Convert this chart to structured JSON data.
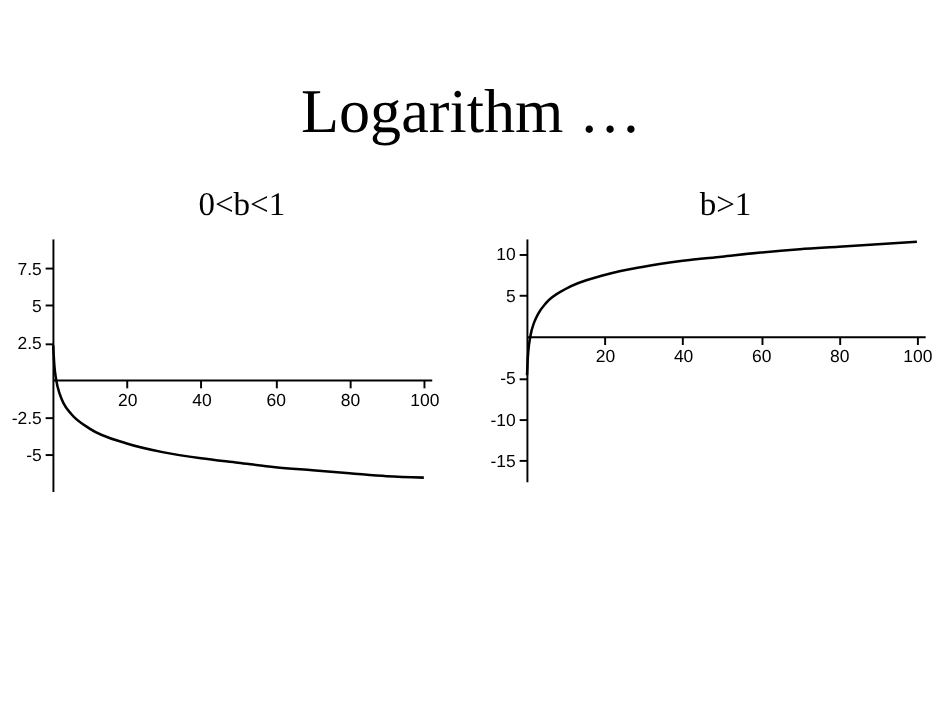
{
  "chart_data": [
    {
      "type": "line",
      "title": "Logarithm …",
      "subtitle": "0<b<1",
      "color": "#000000",
      "x": [
        0.2,
        0.5,
        1,
        2,
        3,
        5,
        10,
        20,
        30,
        40,
        50,
        60,
        70,
        80,
        90,
        100
      ],
      "values": [
        2.3,
        1.0,
        0.0,
        -1.0,
        -1.6,
        -2.3,
        -3.3,
        -4.3,
        -4.9,
        -5.3,
        -5.6,
        -5.9,
        -6.1,
        -6.3,
        -6.5,
        -6.6
      ],
      "xlim": [
        0,
        102
      ],
      "ylim": [
        -7.5,
        9.5
      ],
      "xticks": [
        20,
        40,
        60,
        80,
        100
      ],
      "yticks": [
        -5,
        -2.5,
        2.5,
        5,
        7.5
      ],
      "grid": false
    },
    {
      "type": "line",
      "subtitle": "b>1",
      "color": "#000000",
      "x": [
        0.15,
        0.3,
        0.5,
        1,
        2,
        3,
        5,
        10,
        20,
        30,
        40,
        50,
        60,
        70,
        80,
        90,
        100
      ],
      "values": [
        -4.7,
        -3.0,
        -1.7,
        0.0,
        1.7,
        2.7,
        4.0,
        5.7,
        7.4,
        8.4,
        9.1,
        9.6,
        10.1,
        10.5,
        10.8,
        11.1,
        11.4
      ],
      "xlim": [
        0,
        102
      ],
      "ylim": [
        -17.5,
        11.8
      ],
      "xticks": [
        20,
        40,
        60,
        80,
        100
      ],
      "yticks": [
        -15,
        -10,
        -5,
        5,
        10
      ],
      "grid": false
    }
  ]
}
